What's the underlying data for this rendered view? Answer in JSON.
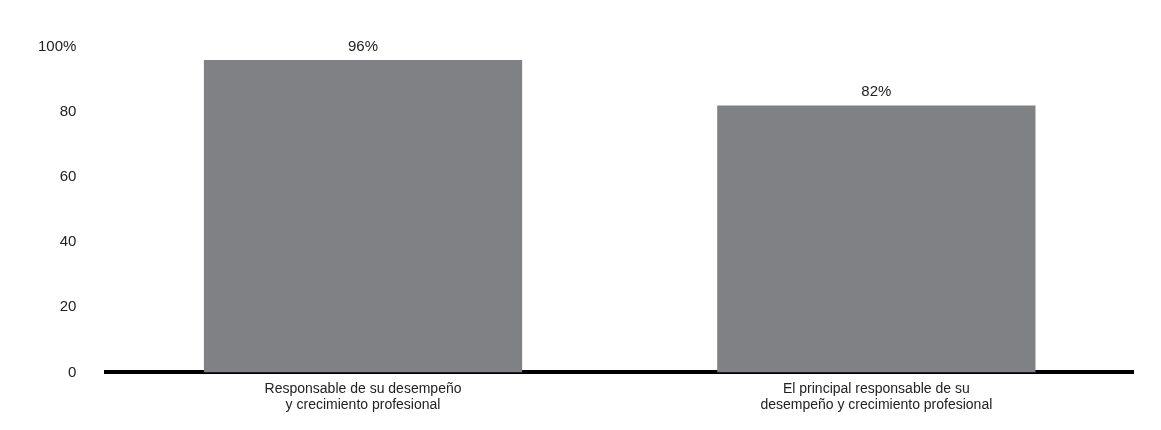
{
  "chart_data": {
    "type": "bar",
    "categories": [
      "Responsable de su desempeño y crecimiento profesional",
      "El principal responsable de su desempeño y crecimiento profesional"
    ],
    "values": [
      96,
      82
    ],
    "value_labels": [
      "96%",
      "82%"
    ],
    "color": "#808184",
    "ylim": [
      0,
      100
    ],
    "yticks": [
      0,
      20,
      40,
      60,
      80,
      {
        "value": 100,
        "label": "100%"
      }
    ],
    "grid": false,
    "legend": false
  }
}
